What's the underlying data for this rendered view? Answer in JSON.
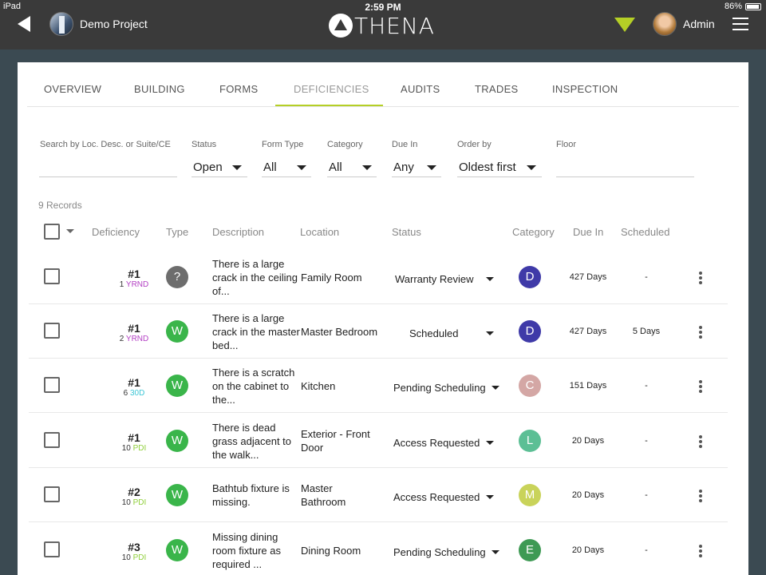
{
  "ios_status": {
    "device": "iPad",
    "time": "2:59 PM",
    "battery": "86%"
  },
  "header": {
    "project_name": "Demo Project",
    "logo_text": "THENA",
    "user_name": "Admin"
  },
  "tabs": [
    {
      "label": "OVERVIEW"
    },
    {
      "label": "BUILDING"
    },
    {
      "label": "FORMS"
    },
    {
      "label": "DEFICIENCIES"
    },
    {
      "label": "AUDITS"
    },
    {
      "label": "TRADES"
    },
    {
      "label": "INSPECTION"
    }
  ],
  "filters": {
    "search_label": "Search by Loc. Desc. or Suite/CE",
    "search_value": "",
    "status_label": "Status",
    "status_value": "Open",
    "formtype_label": "Form Type",
    "formtype_value": "All",
    "category_label": "Category",
    "category_value": "All",
    "duein_label": "Due In",
    "duein_value": "Any",
    "orderby_label": "Order by",
    "orderby_value": "Oldest first",
    "floor_label": "Floor",
    "floor_value": ""
  },
  "records_text": "9 Records",
  "columns": {
    "deficiency": "Deficiency",
    "type": "Type",
    "description": "Description",
    "location": "Location",
    "status": "Status",
    "category": "Category",
    "due_in": "Due In",
    "scheduled": "Scheduled"
  },
  "colors": {
    "accent": "#b5cf26",
    "type_unknown": "#6d6d6d",
    "type_warranty": "#3ab54a",
    "cat_D": "#3f3aa8",
    "cat_C": "#d4a7a5",
    "cat_L": "#5cbf95",
    "cat_M": "#c9d35a",
    "cat_E": "#3e9a54",
    "form_YRND": "#b33fc4",
    "form_30D": "#3cc6d6",
    "form_PDI": "#8fcf3a"
  },
  "rows": [
    {
      "num": "#1",
      "sub_num": "1",
      "form": "YRND",
      "form_color": "#b33fc4",
      "type": "?",
      "type_color": "#6d6d6d",
      "description": "There is a large crack in the ceiling of...",
      "location": "Family Room",
      "status": "Warranty Review",
      "category": "D",
      "category_color": "#3f3aa8",
      "due_in": "427 Days",
      "scheduled": "-"
    },
    {
      "num": "#1",
      "sub_num": "2",
      "form": "YRND",
      "form_color": "#b33fc4",
      "type": "W",
      "type_color": "#3ab54a",
      "description": "There is a large crack in the master bed...",
      "location": "Master Bedroom",
      "status": "Scheduled",
      "category": "D",
      "category_color": "#3f3aa8",
      "due_in": "427 Days",
      "scheduled": "5 Days"
    },
    {
      "num": "#1",
      "sub_num": "6",
      "form": "30D",
      "form_color": "#3cc6d6",
      "type": "W",
      "type_color": "#3ab54a",
      "description": "There is a scratch on the cabinet to the...",
      "location": "Kitchen",
      "status": "Pending Scheduling",
      "category": "C",
      "category_color": "#d4a7a5",
      "due_in": "151 Days",
      "scheduled": "-"
    },
    {
      "num": "#1",
      "sub_num": "10",
      "form": "PDI",
      "form_color": "#8fcf3a",
      "type": "W",
      "type_color": "#3ab54a",
      "description": "There is dead grass adjacent to the walk...",
      "location": "Exterior - Front Door",
      "status": "Access Requested",
      "category": "L",
      "category_color": "#5cbf95",
      "due_in": "20 Days",
      "scheduled": "-"
    },
    {
      "num": "#2",
      "sub_num": "10",
      "form": "PDI",
      "form_color": "#8fcf3a",
      "type": "W",
      "type_color": "#3ab54a",
      "description": "Bathtub fixture is missing.",
      "location": "Master Bathroom",
      "status": "Access Requested",
      "category": "M",
      "category_color": "#c9d35a",
      "due_in": "20 Days",
      "scheduled": "-"
    },
    {
      "num": "#3",
      "sub_num": "10",
      "form": "PDI",
      "form_color": "#8fcf3a",
      "type": "W",
      "type_color": "#3ab54a",
      "description": "Missing dining room fixture as required ...",
      "location": "Dining Room",
      "status": "Pending Scheduling",
      "category": "E",
      "category_color": "#3e9a54",
      "due_in": "20 Days",
      "scheduled": "-"
    }
  ]
}
